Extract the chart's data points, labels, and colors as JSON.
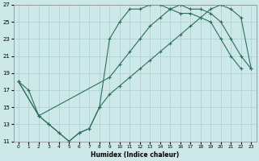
{
  "xlabel": "Humidex (Indice chaleur)",
  "bg_color": "#cce8e8",
  "line_color": "#2e6e60",
  "grid_color": "#aacfcf",
  "xlim": [
    -0.5,
    23.5
  ],
  "ylim": [
    11,
    27
  ],
  "xticks": [
    0,
    1,
    2,
    3,
    4,
    5,
    6,
    7,
    8,
    9,
    10,
    11,
    12,
    13,
    14,
    15,
    16,
    17,
    18,
    19,
    20,
    21,
    22,
    23
  ],
  "yticks": [
    11,
    13,
    15,
    17,
    19,
    21,
    23,
    25,
    27
  ],
  "line1_x": [
    0,
    1,
    2,
    3,
    4,
    5,
    6,
    7,
    8,
    9,
    10,
    11,
    12,
    13,
    14,
    15,
    16,
    17,
    18,
    19,
    20,
    21,
    22
  ],
  "line1_y": [
    18,
    17,
    14,
    13,
    12,
    11,
    12,
    12.5,
    15,
    23,
    25,
    26.5,
    26.5,
    27,
    27,
    26.5,
    26,
    26,
    25.5,
    25,
    23,
    21,
    19.5
  ],
  "line2_x": [
    0,
    2,
    9,
    10,
    11,
    12,
    13,
    14,
    15,
    16,
    17,
    18,
    19,
    20,
    21,
    22,
    23
  ],
  "line2_y": [
    18,
    14,
    18.5,
    20,
    21.5,
    23,
    24.5,
    25.5,
    26.5,
    27,
    26.5,
    26.5,
    26,
    25,
    23,
    21,
    19.5
  ],
  "line3_x": [
    0,
    2,
    3,
    4,
    5,
    6,
    7,
    8,
    9,
    10,
    11,
    12,
    13,
    14,
    15,
    16,
    17,
    18,
    19,
    20,
    21,
    22,
    23
  ],
  "line3_y": [
    18,
    14,
    13,
    12,
    11,
    12,
    12.5,
    15,
    16.5,
    17.5,
    18.5,
    19.5,
    20.5,
    21.5,
    22.5,
    23.5,
    24.5,
    25.5,
    26.5,
    27,
    26.5,
    25.5,
    19.5
  ]
}
